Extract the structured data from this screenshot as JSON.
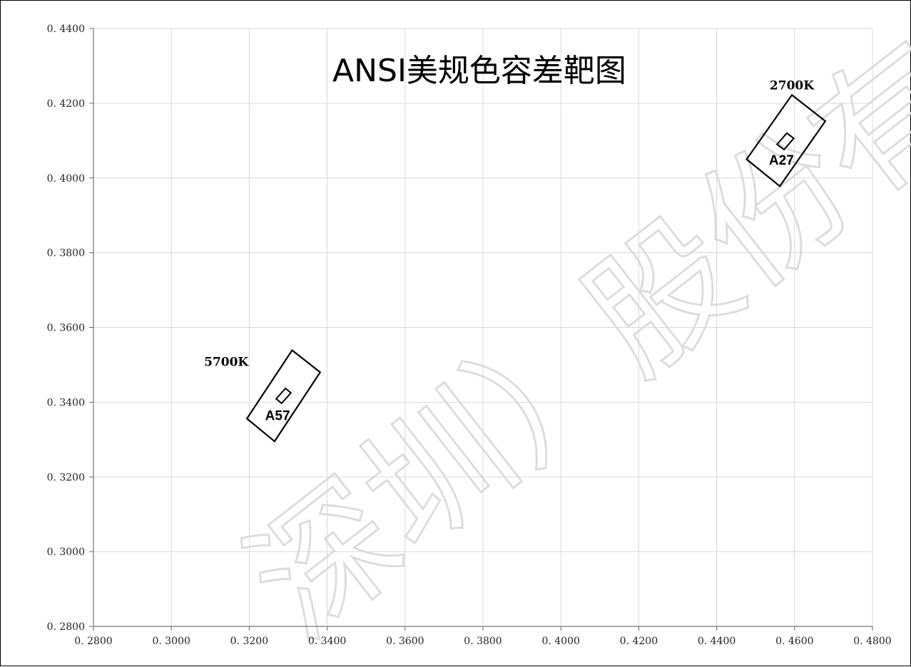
{
  "chart_data": {
    "type": "scatter",
    "title": "ANSI美规色容差靶图",
    "xlabel": "",
    "ylabel": "",
    "xlim": [
      0.28,
      0.48
    ],
    "ylim": [
      0.28,
      0.44
    ],
    "x_ticks": [
      "0.2800",
      "0.3000",
      "0.3200",
      "0.3400",
      "0.3600",
      "0.3800",
      "0.4000",
      "0.4200",
      "0.4400",
      "0.4600",
      "0.4800"
    ],
    "y_ticks": [
      "0.2800",
      "0.3000",
      "0.3200",
      "0.3400",
      "0.3600",
      "0.3800",
      "0.4000",
      "0.4200",
      "0.4400"
    ],
    "grid": true,
    "regions": [
      {
        "cct_label": "2700K",
        "code_label": "A27",
        "outer_quad": [
          [
            0.4593,
            0.4222
          ],
          [
            0.4679,
            0.4152
          ],
          [
            0.4562,
            0.3978
          ],
          [
            0.4477,
            0.405
          ]
        ],
        "inner_quad": [
          [
            0.458,
            0.412
          ],
          [
            0.4598,
            0.4106
          ],
          [
            0.4573,
            0.4076
          ],
          [
            0.4555,
            0.409
          ]
        ]
      },
      {
        "cct_label": "5700K",
        "code_label": "A57",
        "outer_quad": [
          [
            0.331,
            0.3539
          ],
          [
            0.3382,
            0.348
          ],
          [
            0.3265,
            0.3295
          ],
          [
            0.3194,
            0.3356
          ]
        ],
        "inner_quad": [
          [
            0.3293,
            0.3437
          ],
          [
            0.3307,
            0.3425
          ],
          [
            0.3283,
            0.3397
          ],
          [
            0.3269,
            0.3409
          ]
        ]
      }
    ]
  },
  "watermark": "深圳）股份有限公司"
}
